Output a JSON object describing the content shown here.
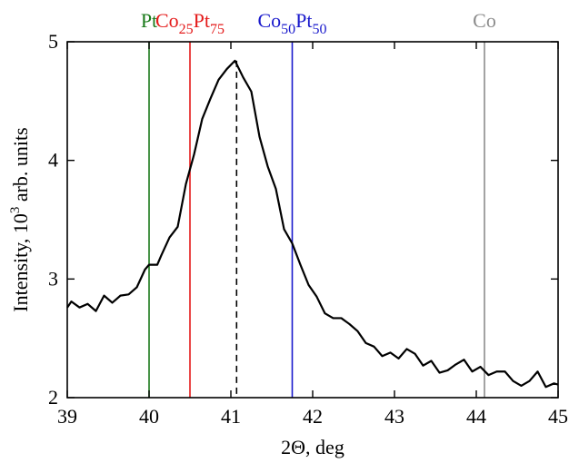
{
  "chart_data": {
    "type": "line",
    "xlabel": "2Θ, deg",
    "ylabel": {
      "pre": "Intensity, 10",
      "sup": "3",
      "post": " arb. units"
    },
    "xlim": [
      39,
      45
    ],
    "ylim": [
      2,
      5
    ],
    "xticks": [
      39,
      40,
      41,
      42,
      43,
      44,
      45
    ],
    "yticks": [
      2,
      3,
      4,
      5
    ],
    "x_tick_labels": [
      "39",
      "40",
      "41",
      "42",
      "43",
      "44",
      "45"
    ],
    "y_tick_labels": [
      "2",
      "3",
      "4",
      "5"
    ],
    "grid": false,
    "series": [
      {
        "color": "#000000",
        "x": [
          39.0,
          39.05,
          39.15,
          39.25,
          39.35,
          39.45,
          39.55,
          39.65,
          39.75,
          39.85,
          39.95,
          40.0,
          40.1,
          40.15,
          40.25,
          40.35,
          40.45,
          40.55,
          40.65,
          40.75,
          40.85,
          40.95,
          41.05,
          41.15,
          41.25,
          41.35,
          41.45,
          41.55,
          41.65,
          41.75,
          41.85,
          41.95,
          42.05,
          42.15,
          42.25,
          42.35,
          42.45,
          42.55,
          42.65,
          42.75,
          42.85,
          42.95,
          43.05,
          43.15,
          43.25,
          43.35,
          43.45,
          43.55,
          43.65,
          43.75,
          43.85,
          43.95,
          44.05,
          44.15,
          44.25,
          44.35,
          44.45,
          44.55,
          44.65,
          44.75,
          44.85,
          44.95,
          45.0
        ],
        "y": [
          2.76,
          2.81,
          2.76,
          2.79,
          2.73,
          2.86,
          2.8,
          2.86,
          2.87,
          2.93,
          3.08,
          3.12,
          3.12,
          3.2,
          3.35,
          3.44,
          3.8,
          4.05,
          4.35,
          4.52,
          4.68,
          4.77,
          4.84,
          4.7,
          4.58,
          4.2,
          3.95,
          3.76,
          3.42,
          3.3,
          3.12,
          2.95,
          2.85,
          2.71,
          2.67,
          2.67,
          2.62,
          2.56,
          2.46,
          2.43,
          2.35,
          2.38,
          2.33,
          2.41,
          2.37,
          2.27,
          2.31,
          2.21,
          2.23,
          2.28,
          2.32,
          2.22,
          2.26,
          2.19,
          2.22,
          2.22,
          2.14,
          2.1,
          2.14,
          2.22,
          2.09,
          2.12,
          2.11
        ]
      }
    ],
    "peak_marker": {
      "x": 41.07,
      "style": "dashed",
      "color": "#000000"
    },
    "reference_lines": [
      {
        "label_parts": [
          {
            "t": "Pt"
          }
        ],
        "x": 40.0,
        "color": "#1a7a1a"
      },
      {
        "label_parts": [
          {
            "t": "Co"
          },
          {
            "t": "25",
            "sub": true
          },
          {
            "t": "Pt"
          },
          {
            "t": "75",
            "sub": true
          }
        ],
        "x": 40.5,
        "color": "#e41a1a"
      },
      {
        "label_parts": [
          {
            "t": "Co"
          },
          {
            "t": "50",
            "sub": true
          },
          {
            "t": "Pt"
          },
          {
            "t": "50",
            "sub": true
          }
        ],
        "x": 41.75,
        "color": "#1a1acc"
      },
      {
        "label_parts": [
          {
            "t": "Co"
          }
        ],
        "x": 44.1,
        "color": "#8c8c8c"
      }
    ]
  }
}
